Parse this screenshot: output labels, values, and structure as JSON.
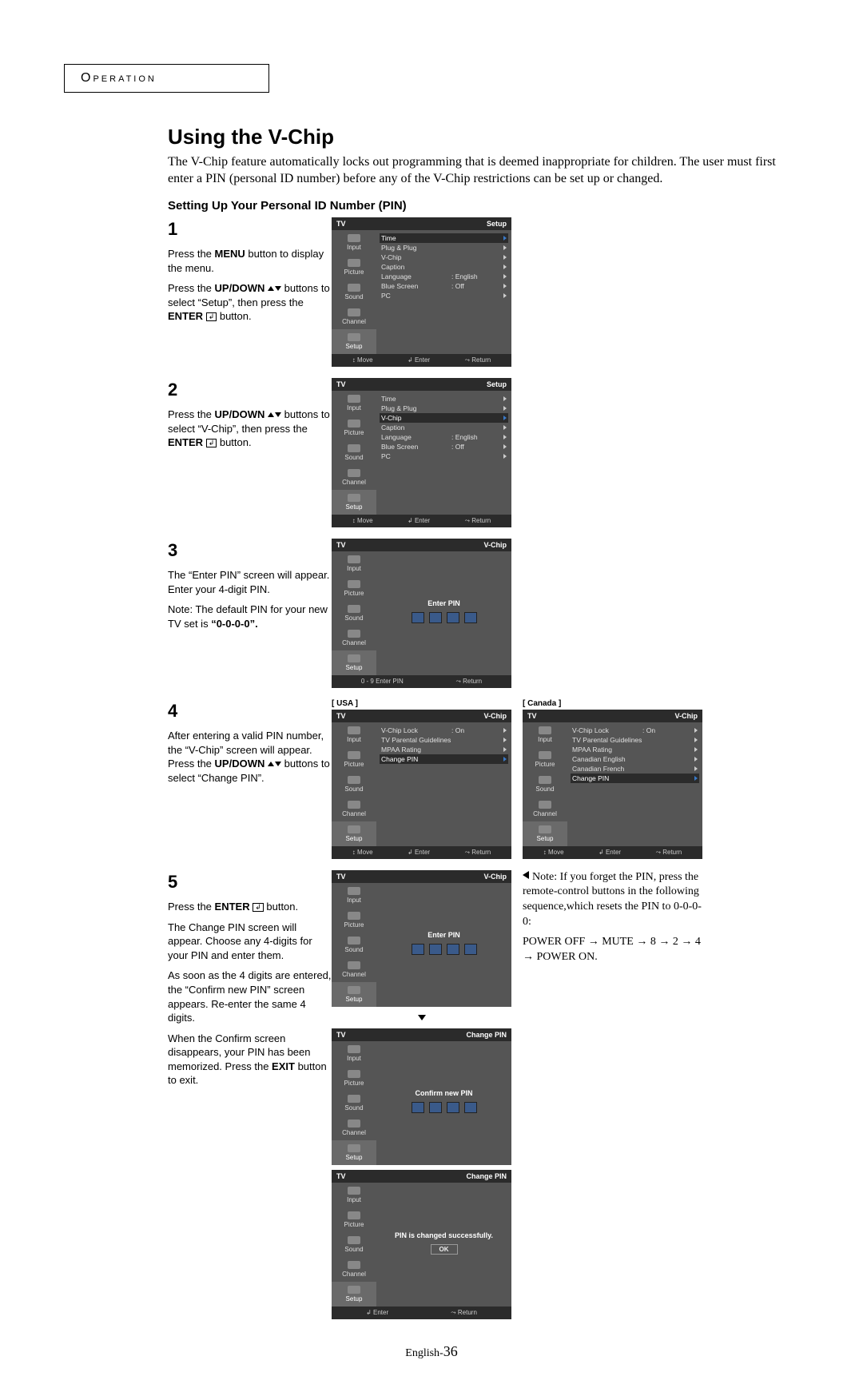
{
  "section_label": "Operation",
  "title": "Using the V-Chip",
  "intro": "The V-Chip feature automatically locks out programming that is deemed inappropriate for children. The user must first enter a PIN (personal ID number) before any of the V-Chip restrictions can be set up or changed.",
  "subtitle": "Setting Up Your Personal ID Number (PIN)",
  "steps": {
    "s1": {
      "num": "1",
      "p1a": "Press the ",
      "p1b": "MENU",
      "p1c": " button to display the menu.",
      "p2a": "Press the ",
      "p2b": "UP/DOWN",
      "p2c": " buttons to select “Setup”, then press the ",
      "p2d": "ENTER",
      "p2e": " button."
    },
    "s2": {
      "num": "2",
      "p1a": "Press the ",
      "p1b": "UP/DOWN",
      "p1c": " buttons to select “V-Chip”, then press the ",
      "p1d": "ENTER",
      "p1e": " button."
    },
    "s3": {
      "num": "3",
      "p1": "The “Enter PIN” screen will appear. Enter your 4-digit PIN.",
      "p2a": "Note: The default PIN for your new TV set is ",
      "p2b": "“0-0-0-0”."
    },
    "s4": {
      "num": "4",
      "p1a": "After entering a valid PIN number, the “V-Chip” screen will appear. Press the ",
      "p1b": "UP/DOWN",
      "p1c": " buttons to select “Change PIN”."
    },
    "s5": {
      "num": "5",
      "p1a": "Press the ",
      "p1b": "ENTER",
      "p1c": " button.",
      "p2": "The Change PIN screen will appear. Choose any 4-digits for your PIN and enter them.",
      "p3": "As soon as the 4 digits are entered, the “Confirm new PIN” screen appears. Re-enter the same 4 digits.",
      "p4a": "When the Confirm screen disappears, your PIN has been memorized. Press the ",
      "p4b": "EXIT",
      "p4c": " button to exit."
    }
  },
  "osd_tabs": [
    "Input",
    "Picture",
    "Sound",
    "Channel",
    "Setup"
  ],
  "osd": {
    "tv": "TV",
    "setup": "Setup",
    "vchip": "V-Chip",
    "changepin": "Change PIN",
    "items_setup": [
      {
        "l": "Time"
      },
      {
        "l": "Plug & Plug"
      },
      {
        "l": "V-Chip"
      },
      {
        "l": "Caption"
      },
      {
        "l": "Language",
        "v": ": English"
      },
      {
        "l": "Blue Screen",
        "v": ": Off"
      },
      {
        "l": "PC"
      }
    ],
    "enter_pin": "Enter PIN",
    "confirm_pin": "Confirm new PIN",
    "pin_success": "PIN is changed successfully.",
    "ok": "OK",
    "footer_move": "↕ Move",
    "footer_enter": "↲ Enter",
    "footer_return": "⤳ Return",
    "footer_09": "0 - 9 Enter PIN",
    "usa_label": "[ USA ]",
    "canada_label": "[ Canada ]",
    "vchip_usa": [
      {
        "l": "V-Chip Lock",
        "v": ": On"
      },
      {
        "l": "TV Parental Guidelines"
      },
      {
        "l": "MPAA Rating"
      },
      {
        "l": "Change PIN"
      }
    ],
    "vchip_ca": [
      {
        "l": "V-Chip Lock",
        "v": ": On"
      },
      {
        "l": "TV Parental Guidelines"
      },
      {
        "l": "MPAA Rating"
      },
      {
        "l": "Canadian English"
      },
      {
        "l": "Canadian French"
      },
      {
        "l": "Change PIN"
      }
    ]
  },
  "note": {
    "l1": "Note: If you forget the PIN, press the remote-control buttons in the following sequence,which resets the PIN to 0-0-0-0:",
    "l2a": "POWER OFF ",
    "l2b": " MUTE ",
    "l2c": " 8 ",
    "l2d": " 2 ",
    "l2e": " 4 ",
    "l2f": " POWER ON."
  },
  "page_num_prefix": "English-",
  "page_num": "36"
}
